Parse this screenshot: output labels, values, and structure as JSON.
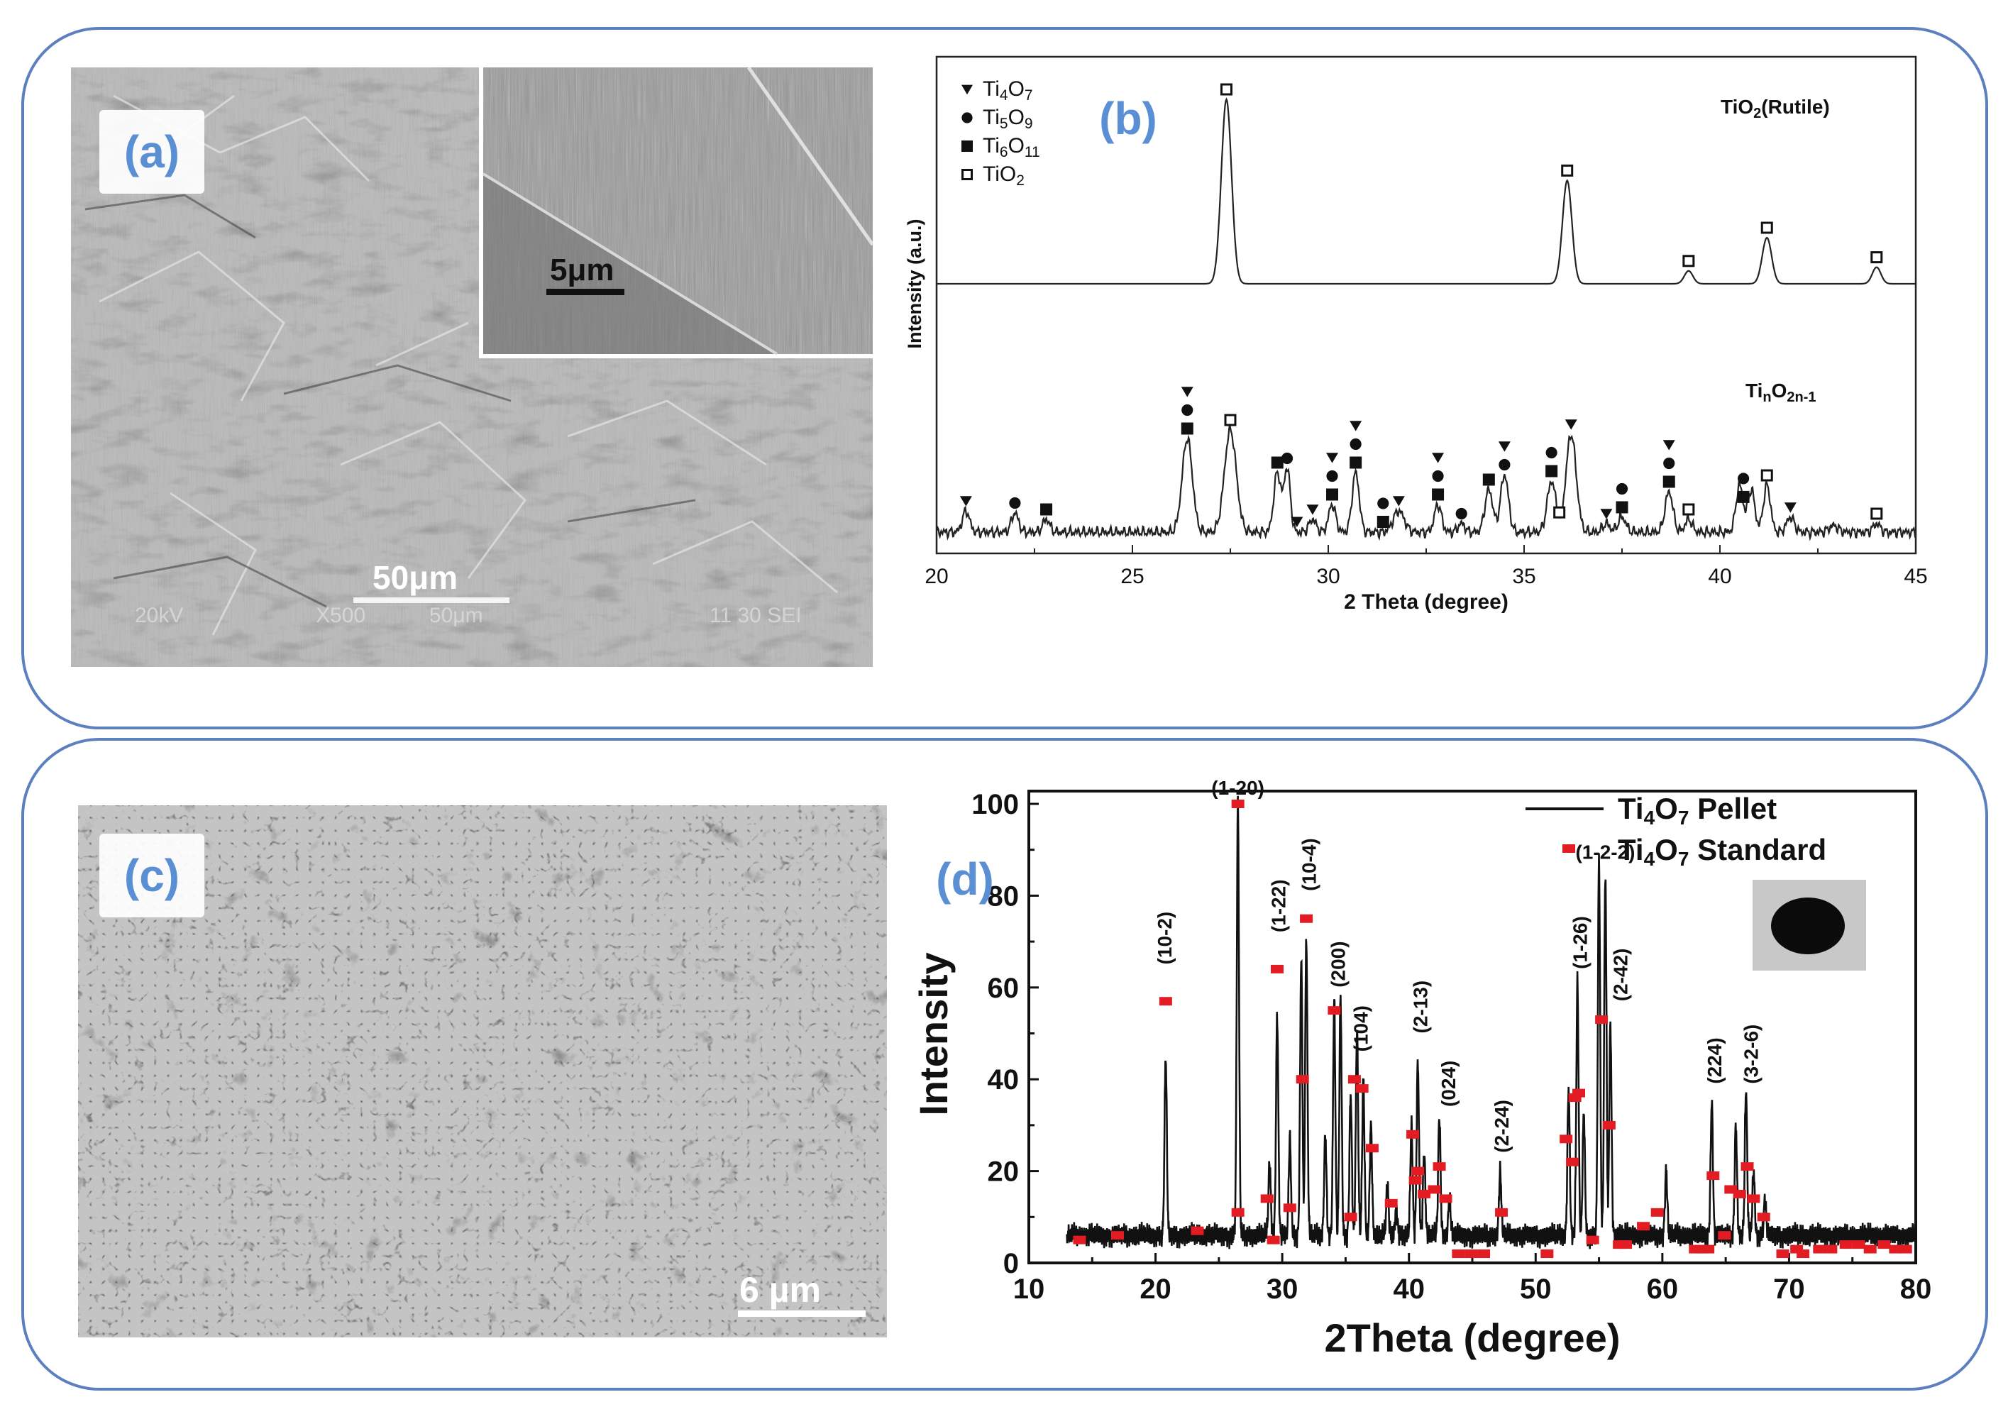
{
  "panels": {
    "a": {
      "label": "(a)",
      "inset_scale_bar": "5μm",
      "scale_bar": "50μm",
      "footer_kv": "20kV",
      "footer_mag": "X500",
      "footer_scale": "50μm",
      "footer_code": "11 30 SEI"
    },
    "b": {
      "label": "(b)"
    },
    "c": {
      "label": "(c)",
      "scale_bar": "6 µm"
    },
    "d": {
      "label": "(d)"
    }
  },
  "colors": {
    "frame": "#5b7fbf",
    "label_text": "#5b8fd4",
    "standard_marker": "#e31b23",
    "line": "#111111"
  },
  "chart_data": [
    {
      "type": "line",
      "panel": "b",
      "xlabel": "2 Theta (degree)",
      "ylabel": "Intensity (a.u.)",
      "xlim": [
        20,
        45
      ],
      "xticks": [
        "20",
        "25",
        "30",
        "35",
        "40",
        "45"
      ],
      "legend": {
        "placement": "top-left",
        "entries": [
          {
            "marker": "triangle-down",
            "label": "Ti",
            "sub1": "4",
            "mid": "O",
            "sub2": "7"
          },
          {
            "marker": "circle",
            "label": "Ti",
            "sub1": "5",
            "mid": "O",
            "sub2": "9"
          },
          {
            "marker": "square",
            "label": "Ti",
            "sub1": "6",
            "mid": "O",
            "sub2": "11"
          },
          {
            "marker": "open-square",
            "label": "Ti",
            "sub1": "",
            "mid": "O",
            "sub2": "2"
          }
        ]
      },
      "series": [
        {
          "name_main": "TiO",
          "name_sub": "2",
          "name_tail": "(Rutile)",
          "baseline": 0.55,
          "peaks": [
            {
              "x": 27.4,
              "h": 1.0,
              "w": 0.13
            },
            {
              "x": 36.1,
              "h": 0.56,
              "w": 0.12
            },
            {
              "x": 39.2,
              "h": 0.07,
              "w": 0.11
            },
            {
              "x": 41.2,
              "h": 0.25,
              "w": 0.12
            },
            {
              "x": 44.0,
              "h": 0.09,
              "w": 0.11
            }
          ],
          "markers": [
            {
              "x": 27.4,
              "types": [
                "open-square"
              ]
            },
            {
              "x": 36.1,
              "types": [
                "open-square"
              ]
            },
            {
              "x": 39.2,
              "types": [
                "open-square"
              ]
            },
            {
              "x": 41.2,
              "types": [
                "open-square"
              ]
            },
            {
              "x": 44.0,
              "types": [
                "open-square"
              ]
            }
          ]
        },
        {
          "name_main": "Ti",
          "name_sub": "n",
          "name_mid": "O",
          "name_sub2": "2n-1",
          "baseline": 0.0,
          "peaks": [
            {
              "x": 20.75,
              "h": 0.1,
              "w": 0.09
            },
            {
              "x": 22.0,
              "h": 0.09,
              "w": 0.09
            },
            {
              "x": 22.8,
              "h": 0.06,
              "w": 0.09
            },
            {
              "x": 26.4,
              "h": 0.44,
              "w": 0.13
            },
            {
              "x": 27.5,
              "h": 0.48,
              "w": 0.15
            },
            {
              "x": 28.7,
              "h": 0.28,
              "w": 0.09
            },
            {
              "x": 28.95,
              "h": 0.3,
              "w": 0.08
            },
            {
              "x": 29.6,
              "h": 0.06,
              "w": 0.09
            },
            {
              "x": 30.1,
              "h": 0.13,
              "w": 0.09
            },
            {
              "x": 30.7,
              "h": 0.28,
              "w": 0.09
            },
            {
              "x": 31.8,
              "h": 0.1,
              "w": 0.14
            },
            {
              "x": 32.8,
              "h": 0.13,
              "w": 0.09
            },
            {
              "x": 33.4,
              "h": 0.04,
              "w": 0.09
            },
            {
              "x": 34.1,
              "h": 0.2,
              "w": 0.1
            },
            {
              "x": 34.5,
              "h": 0.27,
              "w": 0.1
            },
            {
              "x": 35.7,
              "h": 0.24,
              "w": 0.11
            },
            {
              "x": 36.2,
              "h": 0.46,
              "w": 0.13
            },
            {
              "x": 37.1,
              "h": 0.04,
              "w": 0.09
            },
            {
              "x": 37.5,
              "h": 0.07,
              "w": 0.1
            },
            {
              "x": 38.7,
              "h": 0.19,
              "w": 0.1
            },
            {
              "x": 39.2,
              "h": 0.06,
              "w": 0.09
            },
            {
              "x": 40.5,
              "h": 0.22,
              "w": 0.09
            },
            {
              "x": 40.8,
              "h": 0.2,
              "w": 0.09
            },
            {
              "x": 41.2,
              "h": 0.22,
              "w": 0.09
            },
            {
              "x": 41.8,
              "h": 0.07,
              "w": 0.1
            },
            {
              "x": 42.9,
              "h": 0.03,
              "w": 0.12
            },
            {
              "x": 44.0,
              "h": 0.04,
              "w": 0.09
            }
          ],
          "markers": [
            {
              "x": 20.75,
              "types": [
                "triangle-down"
              ]
            },
            {
              "x": 22.0,
              "types": [
                "circle"
              ]
            },
            {
              "x": 22.8,
              "types": [
                "square"
              ]
            },
            {
              "x": 26.4,
              "types": [
                "triangle-down",
                "circle",
                "square"
              ]
            },
            {
              "x": 27.5,
              "types": [
                "open-square"
              ]
            },
            {
              "x": 28.7,
              "types": [
                "square"
              ]
            },
            {
              "x": 28.95,
              "types": [
                "circle"
              ]
            },
            {
              "x": 29.2,
              "types": [
                "triangle-down"
              ]
            },
            {
              "x": 29.6,
              "types": [
                "triangle-down"
              ]
            },
            {
              "x": 30.1,
              "types": [
                "triangle-down",
                "circle",
                "square"
              ]
            },
            {
              "x": 30.7,
              "types": [
                "triangle-down",
                "circle",
                "square"
              ]
            },
            {
              "x": 31.4,
              "types": [
                "circle",
                "square"
              ]
            },
            {
              "x": 31.8,
              "types": [
                "triangle-down"
              ]
            },
            {
              "x": 32.8,
              "types": [
                "triangle-down",
                "circle",
                "square"
              ]
            },
            {
              "x": 33.4,
              "types": [
                "circle"
              ]
            },
            {
              "x": 34.1,
              "types": [
                "square"
              ]
            },
            {
              "x": 34.5,
              "types": [
                "triangle-down",
                "circle"
              ]
            },
            {
              "x": 35.7,
              "types": [
                "circle",
                "square"
              ]
            },
            {
              "x": 35.9,
              "types": [
                "open-square"
              ]
            },
            {
              "x": 36.2,
              "types": [
                "triangle-down"
              ]
            },
            {
              "x": 37.1,
              "types": [
                "triangle-down"
              ]
            },
            {
              "x": 37.5,
              "types": [
                "circle",
                "square"
              ]
            },
            {
              "x": 38.7,
              "types": [
                "triangle-down",
                "circle",
                "square"
              ]
            },
            {
              "x": 39.2,
              "types": [
                "open-square"
              ]
            },
            {
              "x": 40.6,
              "types": [
                "circle",
                "square"
              ]
            },
            {
              "x": 41.2,
              "types": [
                "open-square"
              ]
            },
            {
              "x": 41.8,
              "types": [
                "triangle-down"
              ]
            },
            {
              "x": 44.0,
              "types": [
                "open-square"
              ]
            }
          ]
        }
      ]
    },
    {
      "type": "line",
      "panel": "d",
      "xlabel": "2Theta (degree)",
      "ylabel": "Intensity",
      "xlim": [
        10,
        80
      ],
      "ylim": [
        0,
        100
      ],
      "xticks": [
        10,
        20,
        30,
        40,
        50,
        60,
        70,
        80
      ],
      "xtick_labels": [
        "10",
        "20",
        "30",
        "40",
        "50",
        "60",
        "70",
        "80"
      ],
      "yticks": [
        0,
        20,
        40,
        60,
        80,
        100
      ],
      "ytick_labels": [
        "0",
        "20",
        "40",
        "60",
        "80",
        "100"
      ],
      "legend": {
        "placement": "top-right",
        "entries": [
          {
            "style": "line",
            "label_main": "Ti",
            "sub1": "4",
            "mid": "O",
            "sub2": "7",
            "tail": " Pellet"
          },
          {
            "style": "marker",
            "label_main": "Ti",
            "sub1": "4",
            "mid": "O",
            "sub2": "7",
            "tail": " Standard"
          }
        ]
      },
      "pellet": {
        "baseline": 6,
        "peaks": [
          {
            "x": 20.8,
            "h": 45
          },
          {
            "x": 26.5,
            "h": 100
          },
          {
            "x": 29.0,
            "h": 22
          },
          {
            "x": 29.6,
            "h": 54
          },
          {
            "x": 30.6,
            "h": 27
          },
          {
            "x": 31.5,
            "h": 66
          },
          {
            "x": 31.9,
            "h": 71
          },
          {
            "x": 33.4,
            "h": 28
          },
          {
            "x": 34.1,
            "h": 57
          },
          {
            "x": 34.6,
            "h": 58
          },
          {
            "x": 35.4,
            "h": 37
          },
          {
            "x": 35.9,
            "h": 51
          },
          {
            "x": 36.4,
            "h": 40
          },
          {
            "x": 37.0,
            "h": 30
          },
          {
            "x": 38.3,
            "h": 17
          },
          {
            "x": 39.0,
            "h": 12
          },
          {
            "x": 40.2,
            "h": 30
          },
          {
            "x": 40.7,
            "h": 44
          },
          {
            "x": 41.2,
            "h": 24
          },
          {
            "x": 42.4,
            "h": 32
          },
          {
            "x": 43.2,
            "h": 14
          },
          {
            "x": 47.2,
            "h": 20
          },
          {
            "x": 52.6,
            "h": 38
          },
          {
            "x": 53.3,
            "h": 61
          },
          {
            "x": 53.8,
            "h": 33
          },
          {
            "x": 55.0,
            "h": 88
          },
          {
            "x": 55.5,
            "h": 85
          },
          {
            "x": 55.9,
            "h": 52
          },
          {
            "x": 60.3,
            "h": 20
          },
          {
            "x": 63.9,
            "h": 35
          },
          {
            "x": 65.8,
            "h": 30
          },
          {
            "x": 66.6,
            "h": 38
          },
          {
            "x": 67.2,
            "h": 20
          },
          {
            "x": 68.1,
            "h": 14
          }
        ]
      },
      "standard": {
        "points": [
          [
            14,
            5
          ],
          [
            17,
            6
          ],
          [
            20.8,
            57
          ],
          [
            23.3,
            7
          ],
          [
            26.5,
            100
          ],
          [
            26.5,
            11
          ],
          [
            28.8,
            14
          ],
          [
            29.3,
            5
          ],
          [
            29.6,
            64
          ],
          [
            30.6,
            12
          ],
          [
            31.6,
            40
          ],
          [
            31.9,
            75
          ],
          [
            34.1,
            55
          ],
          [
            35.4,
            10
          ],
          [
            35.7,
            40
          ],
          [
            36.3,
            38
          ],
          [
            37.1,
            25
          ],
          [
            38.6,
            13
          ],
          [
            40.3,
            28
          ],
          [
            40.5,
            18
          ],
          [
            40.7,
            20
          ],
          [
            41.2,
            15
          ],
          [
            42.0,
            16
          ],
          [
            42.4,
            21
          ],
          [
            42.9,
            14
          ],
          [
            43.9,
            2
          ],
          [
            44.9,
            2
          ],
          [
            45.9,
            2
          ],
          [
            47.3,
            11
          ],
          [
            50.9,
            2
          ],
          [
            52.4,
            27
          ],
          [
            52.9,
            22
          ],
          [
            53.1,
            36
          ],
          [
            53.4,
            37
          ],
          [
            54.5,
            5
          ],
          [
            55.2,
            53
          ],
          [
            55.8,
            30
          ],
          [
            56.6,
            4
          ],
          [
            57.1,
            4
          ],
          [
            58.5,
            8
          ],
          [
            59.6,
            11
          ],
          [
            62.6,
            3
          ],
          [
            63.1,
            3
          ],
          [
            63.6,
            3
          ],
          [
            64.0,
            19
          ],
          [
            64.9,
            6
          ],
          [
            65.4,
            16
          ],
          [
            66.1,
            15
          ],
          [
            66.7,
            21
          ],
          [
            67.2,
            14
          ],
          [
            68.0,
            10
          ],
          [
            69.5,
            2
          ],
          [
            70.6,
            3
          ],
          [
            71.1,
            2
          ],
          [
            72.4,
            3
          ],
          [
            73.3,
            3
          ],
          [
            74.5,
            4
          ],
          [
            75.5,
            4
          ],
          [
            76.4,
            3
          ],
          [
            77.5,
            4
          ],
          [
            78.4,
            3
          ],
          [
            79.2,
            3
          ]
        ]
      },
      "peak_labels": [
        {
          "x": 20.8,
          "y": 65,
          "text": "(10-2)",
          "rotate": true
        },
        {
          "x": 26.5,
          "y": 102,
          "text": "(1-20)",
          "rotate": false
        },
        {
          "x": 29.8,
          "y": 72,
          "text": "(1-22)",
          "rotate": true
        },
        {
          "x": 32.2,
          "y": 81,
          "text": "(10-4)",
          "rotate": true
        },
        {
          "x": 34.5,
          "y": 60,
          "text": "(200)",
          "rotate": true
        },
        {
          "x": 36.3,
          "y": 46,
          "text": "(104)",
          "rotate": true
        },
        {
          "x": 41.0,
          "y": 50,
          "text": "(2-13)",
          "rotate": true
        },
        {
          "x": 43.2,
          "y": 34,
          "text": "(024)",
          "rotate": true
        },
        {
          "x": 47.4,
          "y": 24,
          "text": "(2-24)",
          "rotate": true
        },
        {
          "x": 55.5,
          "y": 88,
          "text": "(1-2-2)",
          "rotate": false
        },
        {
          "x": 53.6,
          "y": 64,
          "text": "(1-26)",
          "rotate": true
        },
        {
          "x": 56.8,
          "y": 57,
          "text": "(2-42)",
          "rotate": true
        },
        {
          "x": 64.2,
          "y": 39,
          "text": "(224)",
          "rotate": true
        },
        {
          "x": 67.1,
          "y": 39,
          "text": "(3-2-6)",
          "rotate": true
        }
      ]
    }
  ]
}
